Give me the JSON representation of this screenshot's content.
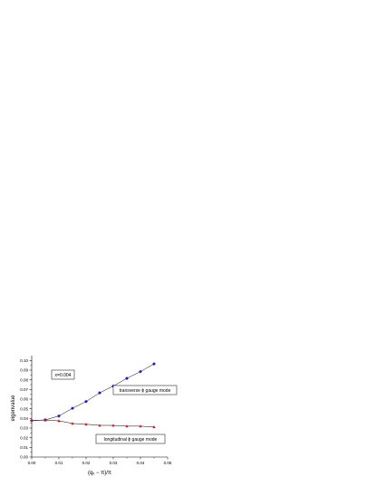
{
  "chart_data": {
    "type": "scatter",
    "xlabel": "(qₓ − π)/π",
    "ylabel": "eigenvalue",
    "xlim": [
      0.0,
      0.05
    ],
    "ylim": [
      0.0,
      0.105
    ],
    "x_ticks": [
      "0.00",
      "0.01",
      "0.02",
      "0.03",
      "0.04",
      "0.05"
    ],
    "y_ticks": [
      "0.00",
      "0.01",
      "0.02",
      "0.03",
      "0.04",
      "0.05",
      "0.06",
      "0.07",
      "0.08",
      "0.09",
      "0.10"
    ],
    "grid": false,
    "series": [
      {
        "name": "transverse ϕ gauge mode",
        "color": "#1a1acc",
        "marker": "diamond",
        "x": [
          0.0,
          0.005,
          0.01,
          0.015,
          0.02,
          0.025,
          0.03,
          0.035,
          0.04,
          0.045
        ],
        "y": [
          0.0378,
          0.0385,
          0.0425,
          0.0505,
          0.0575,
          0.0665,
          0.0735,
          0.0815,
          0.0885,
          0.0965
        ]
      },
      {
        "name": "longitudinal ϕ gauge mode",
        "color": "#cc1a1a",
        "marker": "triangle",
        "x": [
          0.0,
          0.005,
          0.01,
          0.015,
          0.02,
          0.025,
          0.03,
          0.035,
          0.04,
          0.045
        ],
        "y": [
          0.0378,
          0.0383,
          0.0375,
          0.0348,
          0.034,
          0.0328,
          0.0328,
          0.032,
          0.032,
          0.0312
        ]
      }
    ],
    "annotations": [
      {
        "text": "x=0.004",
        "boxed": true
      },
      {
        "text": "transverse ϕ gauge mode",
        "boxed": true
      },
      {
        "text": "longitudinal ϕ gauge mode",
        "boxed": true
      }
    ]
  }
}
